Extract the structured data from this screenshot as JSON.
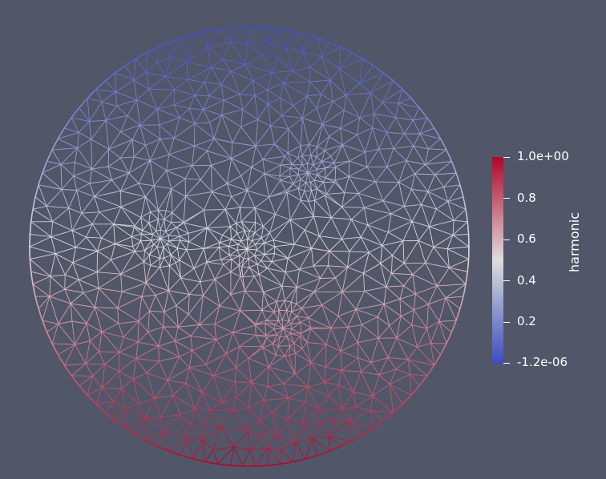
{
  "render": {
    "background": "#525669",
    "mesh_style": "triangulated disk wireframe",
    "hub_count": 4,
    "colormap": [
      "#3b4cc0",
      "#dddddd",
      "#b40426"
    ]
  },
  "colorbar": {
    "title": "harmonic",
    "colormap": [
      "#3b4cc0",
      "#dddddd",
      "#b40426"
    ],
    "ticks": [
      {
        "label": "1.0e+00",
        "value": 1.0
      },
      {
        "label": "0.8",
        "value": 0.8
      },
      {
        "label": "0.6",
        "value": 0.6
      },
      {
        "label": "0.4",
        "value": 0.4
      },
      {
        "label": "0.2",
        "value": 0.2
      },
      {
        "label": "-1.2e-06",
        "value": 0.0
      }
    ]
  }
}
